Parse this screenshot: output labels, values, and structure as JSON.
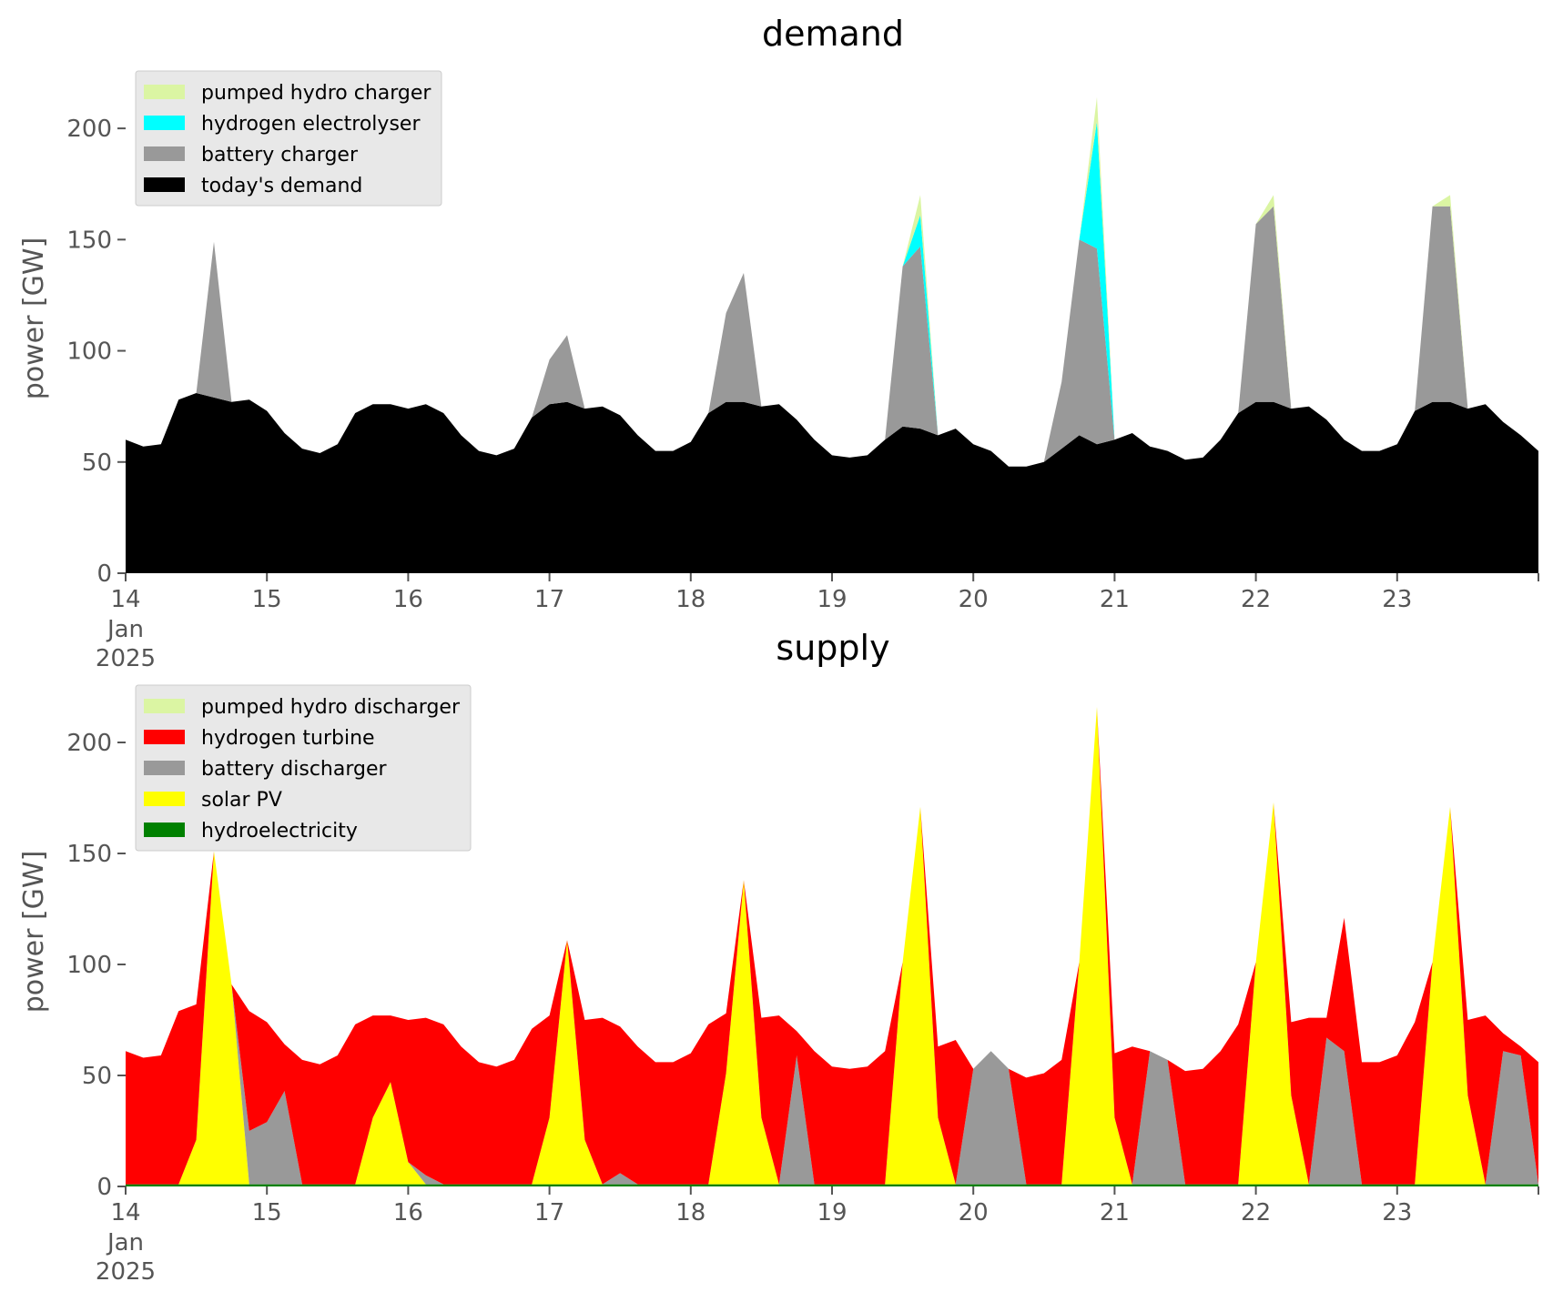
{
  "colors": {
    "pumped_hydro": "#dbf5a3",
    "hydrogen_electrolyser": "#00ffff",
    "battery": "#999999",
    "demand": "#000000",
    "hydrogen_turbine": "#ff0000",
    "solar_pv": "#ffff00",
    "hydroelectricity": "#008000",
    "legend_bg": "#e8e8e8",
    "tick": "#555555"
  },
  "chart_data": [
    {
      "type": "area",
      "stacked": true,
      "title": "demand",
      "xlabel": "",
      "ylabel": "power [GW]",
      "ylim": [
        0,
        225
      ],
      "xlim": [
        "2025-01-14",
        "2025-01-24"
      ],
      "yticks": [
        "0",
        "50",
        "100",
        "150",
        "200"
      ],
      "xticks": [
        {
          "main": "14",
          "sub1": "Jan",
          "sub2": "2025"
        },
        {
          "main": "15"
        },
        {
          "main": "16"
        },
        {
          "main": "17"
        },
        {
          "main": "18"
        },
        {
          "main": "19"
        },
        {
          "main": "20"
        },
        {
          "main": "21"
        },
        {
          "main": "22"
        },
        {
          "main": "23"
        }
      ],
      "legend_position": "upper-left",
      "x_hours": [
        0,
        3,
        6,
        9,
        12,
        15,
        18,
        21,
        24,
        27,
        30,
        33,
        36,
        39,
        42,
        45,
        48,
        51,
        54,
        57,
        60,
        63,
        66,
        69,
        72,
        75,
        78,
        81,
        84,
        87,
        90,
        93,
        96,
        99,
        102,
        105,
        108,
        111,
        114,
        117,
        120,
        123,
        126,
        129,
        132,
        135,
        138,
        141,
        144,
        147,
        150,
        153,
        156,
        159,
        162,
        165,
        168,
        171,
        174,
        177,
        180,
        183,
        186,
        189,
        192,
        195,
        198,
        201,
        204,
        207,
        210,
        213,
        216,
        219,
        222,
        225,
        228,
        231,
        234,
        237,
        240
      ],
      "series": [
        {
          "name": "today's demand",
          "color_key": "demand",
          "values": [
            60,
            57,
            58,
            78,
            81,
            79,
            77,
            78,
            73,
            63,
            56,
            54,
            58,
            72,
            76,
            76,
            74,
            76,
            72,
            62,
            55,
            53,
            56,
            70,
            76,
            77,
            74,
            75,
            71,
            62,
            55,
            55,
            59,
            72,
            77,
            77,
            75,
            76,
            69,
            60,
            53,
            52,
            53,
            60,
            66,
            65,
            62,
            65,
            58,
            55,
            48,
            48,
            50,
            56,
            62,
            58,
            60,
            63,
            57,
            55,
            51,
            52,
            60,
            72,
            77,
            77,
            74,
            75,
            69,
            60,
            55,
            55,
            58,
            73,
            77,
            77,
            74,
            76,
            68,
            62,
            55
          ]
        },
        {
          "name": "battery charger",
          "values": [
            0,
            0,
            0,
            0,
            0,
            70,
            0,
            0,
            0,
            0,
            0,
            0,
            0,
            0,
            0,
            0,
            0,
            0,
            0,
            0,
            0,
            0,
            0,
            0,
            20,
            30,
            0,
            0,
            0,
            0,
            0,
            0,
            0,
            0,
            40,
            58,
            0,
            0,
            0,
            0,
            0,
            0,
            0,
            0,
            72,
            82,
            0,
            0,
            0,
            0,
            0,
            0,
            0,
            30,
            88,
            88,
            0,
            0,
            0,
            0,
            0,
            0,
            0,
            0,
            80,
            88,
            0,
            0,
            0,
            0,
            0,
            0,
            0,
            0,
            88,
            88,
            0,
            0,
            0,
            0,
            0
          ]
        },
        {
          "name": "hydrogen electrolyser",
          "values": [
            0,
            0,
            0,
            0,
            0,
            0,
            0,
            0,
            0,
            0,
            0,
            0,
            0,
            0,
            0,
            0,
            0,
            0,
            0,
            0,
            0,
            0,
            0,
            0,
            0,
            0,
            0,
            0,
            0,
            0,
            0,
            0,
            0,
            0,
            0,
            0,
            0,
            0,
            0,
            0,
            0,
            0,
            0,
            0,
            0,
            14,
            0,
            0,
            0,
            0,
            0,
            0,
            0,
            0,
            0,
            57,
            0,
            0,
            0,
            0,
            0,
            0,
            0,
            0,
            0,
            0,
            0,
            0,
            0,
            0,
            0,
            0,
            0,
            0,
            0,
            0,
            0,
            0,
            0,
            0,
            0
          ]
        },
        {
          "name": "pumped hydro charger",
          "values": [
            0,
            0,
            0,
            0,
            0,
            0,
            0,
            0,
            0,
            0,
            0,
            0,
            0,
            0,
            0,
            0,
            0,
            0,
            0,
            0,
            0,
            0,
            0,
            0,
            0,
            0,
            0,
            0,
            0,
            0,
            0,
            0,
            0,
            0,
            0,
            0,
            0,
            0,
            0,
            0,
            0,
            0,
            0,
            0,
            0,
            9,
            0,
            0,
            0,
            0,
            0,
            0,
            0,
            0,
            0,
            11,
            0,
            0,
            0,
            0,
            0,
            0,
            0,
            0,
            0,
            5,
            0,
            0,
            0,
            0,
            0,
            0,
            0,
            0,
            0,
            5,
            0,
            0,
            0,
            0,
            0
          ]
        }
      ],
      "legend": [
        "pumped hydro charger",
        "hydrogen electrolyser",
        "battery charger",
        "today's demand"
      ]
    },
    {
      "type": "area",
      "stacked": true,
      "title": "supply",
      "xlabel": "",
      "ylabel": "power [GW]",
      "ylim": [
        0,
        225
      ],
      "xlim": [
        "2025-01-14",
        "2025-01-24"
      ],
      "yticks": [
        "0",
        "50",
        "100",
        "150",
        "200"
      ],
      "xticks": [
        {
          "main": "14",
          "sub1": "Jan",
          "sub2": "2025"
        },
        {
          "main": "15"
        },
        {
          "main": "16"
        },
        {
          "main": "17"
        },
        {
          "main": "18"
        },
        {
          "main": "19"
        },
        {
          "main": "20"
        },
        {
          "main": "21"
        },
        {
          "main": "22"
        },
        {
          "main": "23"
        }
      ],
      "legend_position": "upper-left",
      "x_hours": [
        0,
        3,
        6,
        9,
        12,
        15,
        18,
        21,
        24,
        27,
        30,
        33,
        36,
        39,
        42,
        45,
        48,
        51,
        54,
        57,
        60,
        63,
        66,
        69,
        72,
        75,
        78,
        81,
        84,
        87,
        90,
        93,
        96,
        99,
        102,
        105,
        108,
        111,
        114,
        117,
        120,
        123,
        126,
        129,
        132,
        135,
        138,
        141,
        144,
        147,
        150,
        153,
        156,
        159,
        162,
        165,
        168,
        171,
        174,
        177,
        180,
        183,
        186,
        189,
        192,
        195,
        198,
        201,
        204,
        207,
        210,
        213,
        216,
        219,
        222,
        225,
        228,
        231,
        234,
        237,
        240
      ],
      "series": [
        {
          "name": "hydroelectricity",
          "values": [
            1,
            1,
            1,
            1,
            1,
            1,
            1,
            1,
            1,
            1,
            1,
            1,
            1,
            1,
            1,
            1,
            1,
            1,
            1,
            1,
            1,
            1,
            1,
            1,
            1,
            1,
            1,
            1,
            1,
            1,
            1,
            1,
            1,
            1,
            1,
            1,
            1,
            1,
            1,
            1,
            1,
            1,
            1,
            1,
            1,
            1,
            1,
            1,
            1,
            1,
            1,
            1,
            1,
            1,
            1,
            1,
            1,
            1,
            1,
            1,
            1,
            1,
            1,
            1,
            1,
            1,
            1,
            1,
            1,
            1,
            1,
            1,
            1,
            1,
            1,
            1,
            1,
            1,
            1,
            1,
            1
          ]
        },
        {
          "name": "solar PV",
          "values": [
            0,
            0,
            0,
            0,
            20,
            150,
            90,
            0,
            0,
            0,
            0,
            0,
            0,
            0,
            30,
            46,
            10,
            0,
            0,
            0,
            0,
            0,
            0,
            0,
            30,
            110,
            20,
            0,
            0,
            0,
            0,
            0,
            0,
            0,
            50,
            137,
            30,
            0,
            0,
            0,
            0,
            0,
            0,
            0,
            100,
            170,
            30,
            0,
            0,
            0,
            0,
            0,
            0,
            0,
            100,
            215,
            30,
            0,
            0,
            0,
            0,
            0,
            0,
            0,
            100,
            172,
            40,
            0,
            0,
            0,
            0,
            0,
            0,
            0,
            100,
            170,
            40,
            0,
            0,
            0,
            0
          ]
        },
        {
          "name": "battery discharger",
          "values": [
            0,
            0,
            0,
            0,
            0,
            0,
            0,
            24,
            28,
            42,
            0,
            0,
            0,
            0,
            0,
            0,
            0,
            4,
            0,
            0,
            0,
            0,
            0,
            0,
            0,
            0,
            0,
            0,
            5,
            0,
            0,
            0,
            0,
            0,
            0,
            0,
            0,
            0,
            58,
            0,
            0,
            0,
            0,
            0,
            0,
            0,
            0,
            0,
            52,
            60,
            52,
            0,
            0,
            0,
            0,
            0,
            0,
            0,
            60,
            56,
            0,
            0,
            0,
            0,
            0,
            0,
            0,
            0,
            66,
            60,
            0,
            0,
            0,
            0,
            0,
            0,
            0,
            0,
            60,
            58,
            0
          ]
        },
        {
          "name": "hydrogen turbine",
          "values": [
            60,
            57,
            58,
            78,
            61,
            0,
            0,
            54,
            45,
            21,
            56,
            54,
            58,
            72,
            46,
            30,
            64,
            71,
            72,
            62,
            55,
            53,
            56,
            70,
            46,
            0,
            54,
            75,
            66,
            62,
            55,
            55,
            59,
            72,
            27,
            0,
            45,
            76,
            11,
            60,
            53,
            52,
            53,
            60,
            0,
            0,
            32,
            65,
            0,
            0,
            0,
            48,
            50,
            56,
            0,
            0,
            29,
            62,
            0,
            0,
            51,
            52,
            60,
            72,
            0,
            0,
            33,
            75,
            9,
            60,
            55,
            55,
            58,
            73,
            0,
            0,
            34,
            76,
            8,
            4,
            55
          ]
        },
        {
          "name": "pumped hydro discharger",
          "values": [
            0,
            0,
            0,
            0,
            0,
            0,
            0,
            0,
            0,
            0,
            0,
            0,
            0,
            0,
            0,
            0,
            0,
            0,
            0,
            0,
            0,
            0,
            0,
            0,
            0,
            0,
            0,
            0,
            0,
            0,
            0,
            0,
            0,
            0,
            0,
            0,
            0,
            0,
            0,
            0,
            0,
            0,
            0,
            0,
            0,
            0,
            0,
            0,
            0,
            0,
            0,
            0,
            0,
            0,
            0,
            0,
            0,
            0,
            0,
            0,
            0,
            0,
            0,
            0,
            0,
            0,
            0,
            0,
            0,
            0,
            0,
            0,
            0,
            0,
            0,
            0,
            0,
            0,
            0,
            0,
            0
          ]
        }
      ],
      "legend": [
        "pumped hydro discharger",
        "hydrogen turbine",
        "battery discharger",
        "solar PV",
        "hydroelectricity"
      ]
    }
  ]
}
